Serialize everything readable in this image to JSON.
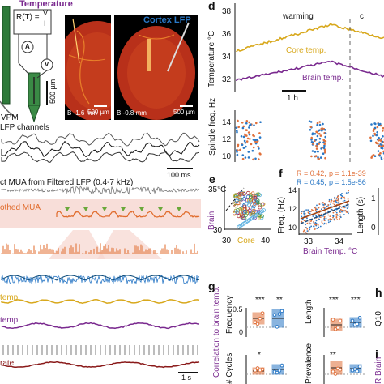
{
  "colors": {
    "core": "#d8a81c",
    "brain": "#7a2a8f",
    "blue": "#2a78c6",
    "orange": "#e0703a",
    "mua": "#e06a2a",
    "histology": "#b8301a",
    "dark": "#111111"
  },
  "panel_a": {
    "title": "Temperature",
    "formula_lhs": "R(T) =",
    "formula_num": "V",
    "formula_den": "I",
    "ammeter": "A",
    "voltmeter": "V",
    "label_vpm": "VPM",
    "scale_um": "500 µm"
  },
  "panel_b": {
    "title_right": "Cortex LFP",
    "left_coord": "B -1.6 mm",
    "left_scale": "500 µm",
    "right_coord": "B -0.8 mm",
    "right_scale": "500 µm"
  },
  "panel_c": {
    "lfp_label": "LFP channels",
    "scale_time": "100 ms",
    "mua_label": "ct MUA from Filtered LFP (0.4-7 kHz)",
    "smoothed_label": "othed MUA",
    "core_label": "temp.",
    "brain_label": "temp.",
    "rate_label": "rate",
    "scale_1s": "1 s"
  },
  "panel_d": {
    "letter": "d",
    "ylabel_top": "Temperature °C",
    "yticks_top": [
      "38",
      "36",
      "34",
      "32"
    ],
    "annotation_warming": "warming",
    "annotation_cooling": "c",
    "core_label": "Core temp.",
    "brain_label": "Brain temp.",
    "scale_label": "1 h",
    "ylabel_bottom": "Spindle freq. Hz",
    "yticks_bottom": [
      "14",
      "12",
      "10"
    ]
  },
  "panel_e": {
    "letter": "e",
    "top_label": "35°C",
    "ylabel": "Brain",
    "xlabel": "Core",
    "xticks": [
      "30",
      "40"
    ],
    "ytick_bottom": "30"
  },
  "panel_f": {
    "letter": "f",
    "stat1": "R = 0.42,",
    "stat1_p": "p = 1.1e-39",
    "stat2": "R = 0.45,",
    "stat2_p": "p = 1.5e-56",
    "ylabel": "Freq. (Hz)",
    "yticks": [
      "14",
      "12",
      "10"
    ],
    "xticks": [
      "33",
      "34"
    ],
    "xlabel": "Brain Temp. °C",
    "right_ylabel": "Length (s)",
    "right_yticks": [
      "1",
      "0"
    ]
  },
  "panel_g": {
    "letter": "g",
    "ylabel": "Correlation to brain temp.",
    "sub": [
      {
        "name": "Frequency",
        "stars": [
          "***",
          "**"
        ]
      },
      {
        "name": "Length",
        "stars": [
          "***",
          "***"
        ]
      },
      {
        "name": "# Cycles",
        "stars": [
          "*",
          ""
        ]
      },
      {
        "name": "Prevalence",
        "stars": [
          "**",
          ""
        ]
      }
    ],
    "yticks": [
      "0.5",
      "0"
    ]
  },
  "panel_h": {
    "letter": "h",
    "ylabel": "Q10"
  },
  "panel_i": {
    "letter": "i",
    "ylabel": "R Brain"
  }
}
